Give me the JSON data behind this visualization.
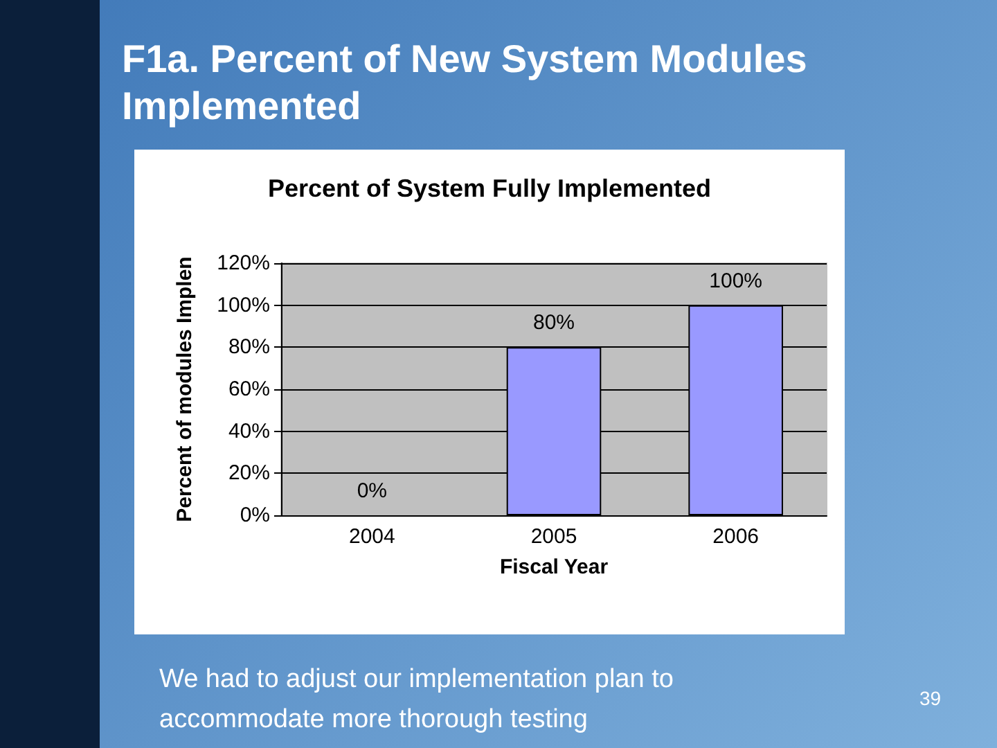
{
  "chart_data": {
    "type": "bar",
    "title": "F1a. Percent of New System Modules Implemented",
    "subtitle": "Percent of System Fully Implemented",
    "xlabel": "Fiscal Year",
    "ylabel": "Percent of modules Implen",
    "categories": [
      "2004",
      "2005",
      "2006"
    ],
    "values": [
      0,
      80,
      100
    ],
    "color": "#9999ff",
    "value_labels": [
      "0%",
      "80%",
      "100%"
    ],
    "ylim": [
      0,
      120
    ],
    "yticks": [
      {
        "value": 0,
        "label": "0%"
      },
      {
        "value": 20,
        "label": "20%"
      },
      {
        "value": 40,
        "label": "40%"
      },
      {
        "value": 60,
        "label": "60%"
      },
      {
        "value": 80,
        "label": "80%"
      },
      {
        "value": 100,
        "label": "100%"
      },
      {
        "value": 120,
        "label": "120%"
      }
    ],
    "grid": "y",
    "annotations": [
      "We had to adjust our implementation plan to accommodate more thorough testing",
      "39"
    ]
  }
}
